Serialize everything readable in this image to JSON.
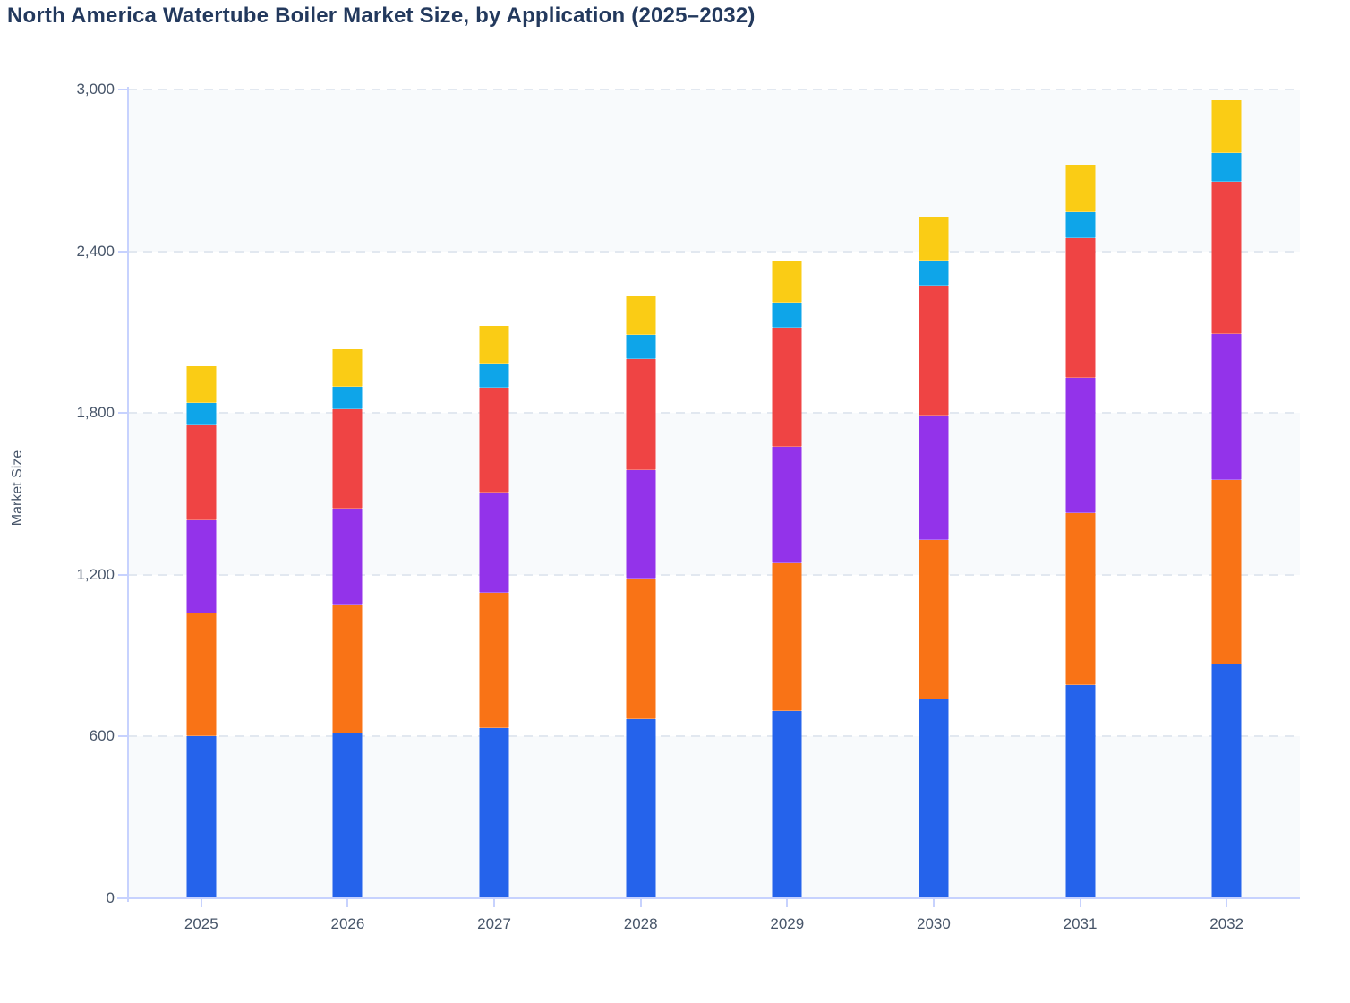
{
  "title": "North America Watertube Boiler Market Size, by Application (2025–2032)",
  "colors": {
    "title_text": "#23395d",
    "axis_text": "#475569",
    "axis_line": "#c7d2fe",
    "gridline": "#e2e8f0",
    "band_light": "#f8fafc",
    "background": "#ffffff"
  },
  "chart_data": {
    "type": "bar",
    "stacked": true,
    "title": "North America Watertube Boiler Market Size, by Application (2025–2032)",
    "xlabel": "",
    "ylabel": "Market Size",
    "ylim": [
      0,
      3000
    ],
    "yticks": [
      0,
      600,
      1200,
      1800,
      2400,
      3000
    ],
    "ytick_labels": [
      "0",
      "600",
      "1,200",
      "1,800",
      "2,400",
      "3,000"
    ],
    "categories": [
      "2025",
      "2026",
      "2027",
      "2028",
      "2029",
      "2030",
      "2031",
      "2032"
    ],
    "grid": "horizontal-dashed",
    "plot_bands": "alternating",
    "legend": "none",
    "series": [
      {
        "name": "segment-1-blue",
        "color": "#2563eb",
        "values": [
          600,
          610,
          632,
          665,
          695,
          736,
          791,
          866
        ]
      },
      {
        "name": "segment-2-orange",
        "color": "#f97316",
        "values": [
          455,
          478,
          500,
          522,
          549,
          594,
          636,
          685
        ]
      },
      {
        "name": "segment-3-purple",
        "color": "#9333ea",
        "values": [
          348,
          358,
          373,
          400,
          432,
          461,
          504,
          542
        ]
      },
      {
        "name": "segment-4-red",
        "color": "#ef4444",
        "values": [
          350,
          368,
          390,
          412,
          442,
          480,
          517,
          564
        ]
      },
      {
        "name": "segment-5-skyblue",
        "color": "#0ea5e9",
        "values": [
          85,
          84,
          88,
          91,
          92,
          96,
          98,
          106
        ]
      },
      {
        "name": "segment-6-yellow",
        "color": "#facc15",
        "values": [
          135,
          140,
          141,
          142,
          151,
          162,
          174,
          196
        ]
      }
    ],
    "totals": [
      1973,
      2038,
      2124,
      2232,
      2361,
      2529,
      2720,
      2959
    ]
  }
}
